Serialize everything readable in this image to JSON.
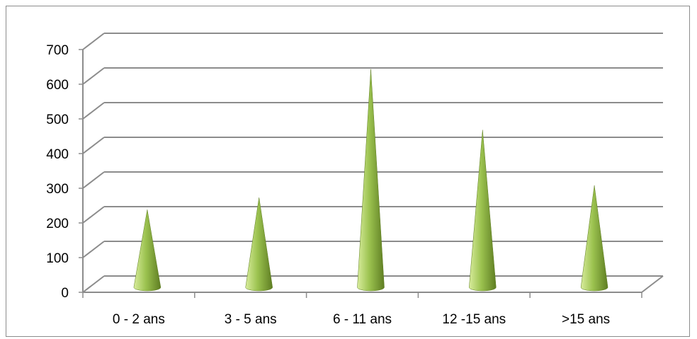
{
  "chart_data": {
    "type": "bar",
    "shape": "cone",
    "categories": [
      "0 - 2 ans",
      "3 - 5 ans",
      "6 - 11 ans",
      "12 -15 ans",
      ">15 ans"
    ],
    "values": [
      220,
      255,
      625,
      450,
      290
    ],
    "ylim": [
      0,
      700
    ],
    "yticks": [
      0,
      100,
      200,
      300,
      400,
      500,
      600,
      700
    ],
    "grid": true,
    "legend": "none",
    "title": "",
    "xlabel": "",
    "ylabel": "",
    "colors": {
      "cone_light": "#d8ec9c",
      "cone_mid": "#9bc24f",
      "cone_dark": "#5e7d22",
      "grid": "#8c8c8c"
    }
  }
}
